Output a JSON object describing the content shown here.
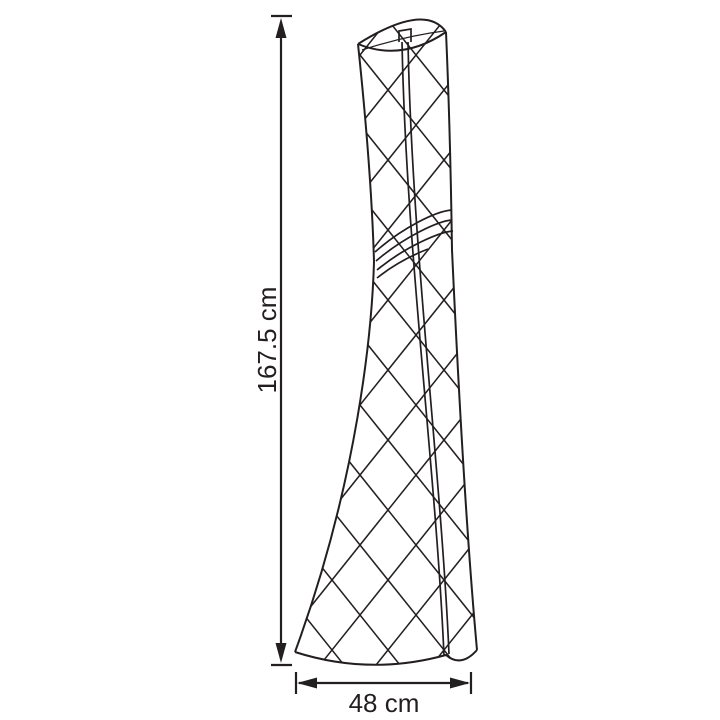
{
  "page": {
    "background_color": "#ffffff"
  },
  "diagram": {
    "line_color": "#231f20",
    "object": {
      "kind": "floor-lamp",
      "rendering": "wireframe line drawing, curved conical shade with diamond lattice"
    },
    "dimensions": {
      "height": {
        "label": "167.5 cm",
        "value": 167.5,
        "unit": "cm",
        "orientation": "vertical"
      },
      "width": {
        "label": "48 cm",
        "value": 48,
        "unit": "cm",
        "orientation": "horizontal"
      }
    }
  }
}
